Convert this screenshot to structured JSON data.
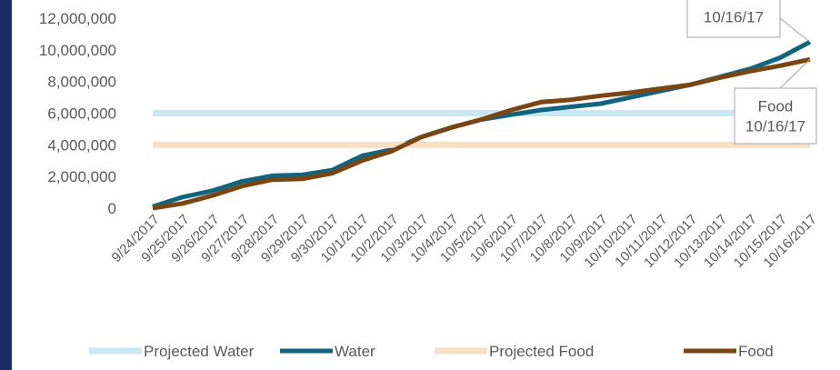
{
  "chart_data": {
    "type": "line",
    "x": [
      "9/24/2017",
      "9/25/2017",
      "9/26/2017",
      "9/27/2017",
      "9/28/2017",
      "9/29/2017",
      "9/30/2017",
      "10/1/2017",
      "10/2/2017",
      "10/3/2017",
      "10/4/2017",
      "10/5/2017",
      "10/6/2017",
      "10/7/2017",
      "10/8/2017",
      "10/9/2017",
      "10/10/2017",
      "10/11/2017",
      "10/12/2017",
      "10/13/2017",
      "10/14/2017",
      "10/15/2017",
      "10/16/2017"
    ],
    "series": [
      {
        "name": "Projected Water",
        "color": "#c9e8f4",
        "width": 7,
        "values": [
          6000000,
          6000000,
          6000000,
          6000000,
          6000000,
          6000000,
          6000000,
          6000000,
          6000000,
          6000000,
          6000000,
          6000000,
          6000000,
          6000000,
          6000000,
          6000000,
          6000000,
          6000000,
          6000000,
          6000000,
          6000000,
          6000000,
          6000000
        ]
      },
      {
        "name": "Water",
        "color": "#12657e",
        "width": 5,
        "values": [
          100000,
          700000,
          1100000,
          1700000,
          2050000,
          2100000,
          2400000,
          3300000,
          3700000,
          4500000,
          5100000,
          5600000,
          5900000,
          6200000,
          6400000,
          6600000,
          7000000,
          7400000,
          7800000,
          8300000,
          8800000,
          9500000,
          10500000
        ]
      },
      {
        "name": "Projected Food",
        "color": "#f8e0c6",
        "width": 7,
        "values": [
          4000000,
          4000000,
          4000000,
          4000000,
          4000000,
          4000000,
          4000000,
          4000000,
          4000000,
          4000000,
          4000000,
          4000000,
          4000000,
          4000000,
          4000000,
          4000000,
          4000000,
          4000000,
          4000000,
          4000000,
          4000000,
          4000000,
          4000000
        ]
      },
      {
        "name": "Food",
        "color": "#7a4510",
        "width": 5,
        "values": [
          0,
          300000,
          800000,
          1400000,
          1800000,
          1850000,
          2200000,
          3000000,
          3600000,
          4500000,
          5100000,
          5600000,
          6200000,
          6700000,
          6850000,
          7100000,
          7300000,
          7550000,
          7800000,
          8250000,
          8650000,
          9000000,
          9400000
        ]
      }
    ],
    "ylim": [
      0,
      12000000
    ],
    "yticks": [
      "0",
      "2,000,000",
      "4,000,000",
      "6,000,000",
      "8,000,000",
      "10,000,000",
      "12,000,000"
    ],
    "grid": false,
    "legend_position": "bottom",
    "annotations": [
      {
        "series": "Water",
        "lines": [
          "10/16/17"
        ]
      },
      {
        "series": "Food",
        "lines": [
          "Food",
          "10/16/17"
        ]
      }
    ]
  },
  "colors": {
    "accent_bar": "#1b2a63",
    "axis_text": "#595959",
    "callout_border": "#a6a6a6"
  }
}
